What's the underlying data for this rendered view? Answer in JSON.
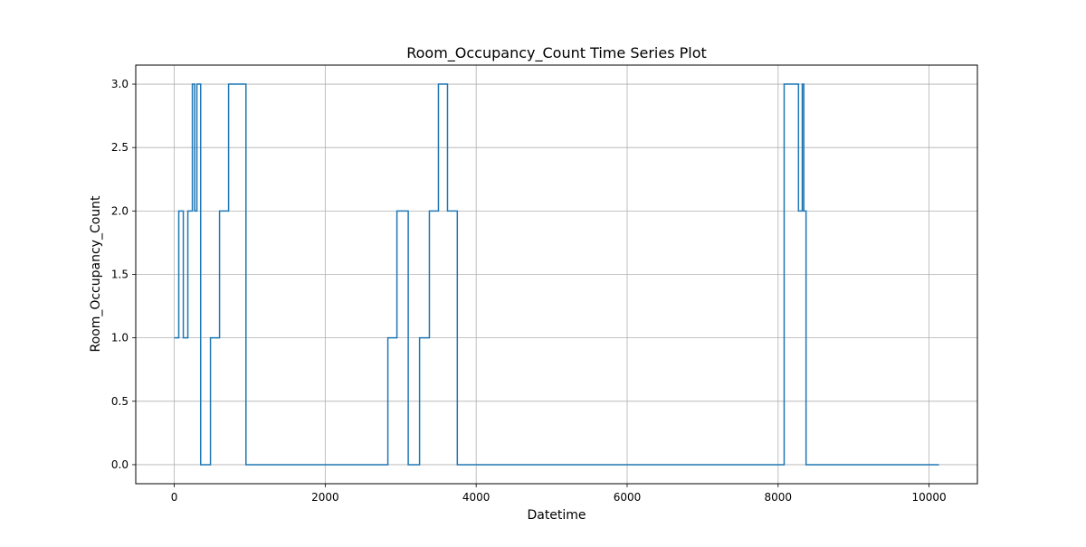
{
  "chart_data": {
    "type": "line",
    "drawstyle": "steps-post",
    "title": "Room_Occupancy_Count Time Series Plot",
    "xlabel": "Datetime",
    "ylabel": "Room_Occupancy_Count",
    "xlim": [
      -510,
      10640
    ],
    "ylim": [
      -0.15,
      3.15
    ],
    "xticks": [
      0,
      2000,
      4000,
      6000,
      8000,
      10000
    ],
    "xtick_labels": [
      "0",
      "2000",
      "4000",
      "6000",
      "8000",
      "10000"
    ],
    "yticks": [
      0.0,
      0.5,
      1.0,
      1.5,
      2.0,
      2.5,
      3.0
    ],
    "ytick_labels": [
      "0.0",
      "0.5",
      "1.0",
      "1.5",
      "2.0",
      "2.5",
      "3.0"
    ],
    "grid": true,
    "series": [
      {
        "color": "#1f77b4",
        "x": [
          0,
          60,
          120,
          180,
          240,
          270,
          300,
          350,
          480,
          600,
          720,
          950,
          2830,
          2950,
          3100,
          3250,
          3380,
          3500,
          3620,
          3750,
          8080,
          8270,
          8320,
          8340,
          8370,
          10130
        ],
        "y": [
          1,
          2,
          1,
          2,
          3,
          2,
          3,
          0,
          1,
          2,
          3,
          0,
          1,
          2,
          0,
          1,
          2,
          3,
          2,
          0,
          3,
          2,
          3,
          2,
          0,
          0
        ]
      }
    ]
  }
}
